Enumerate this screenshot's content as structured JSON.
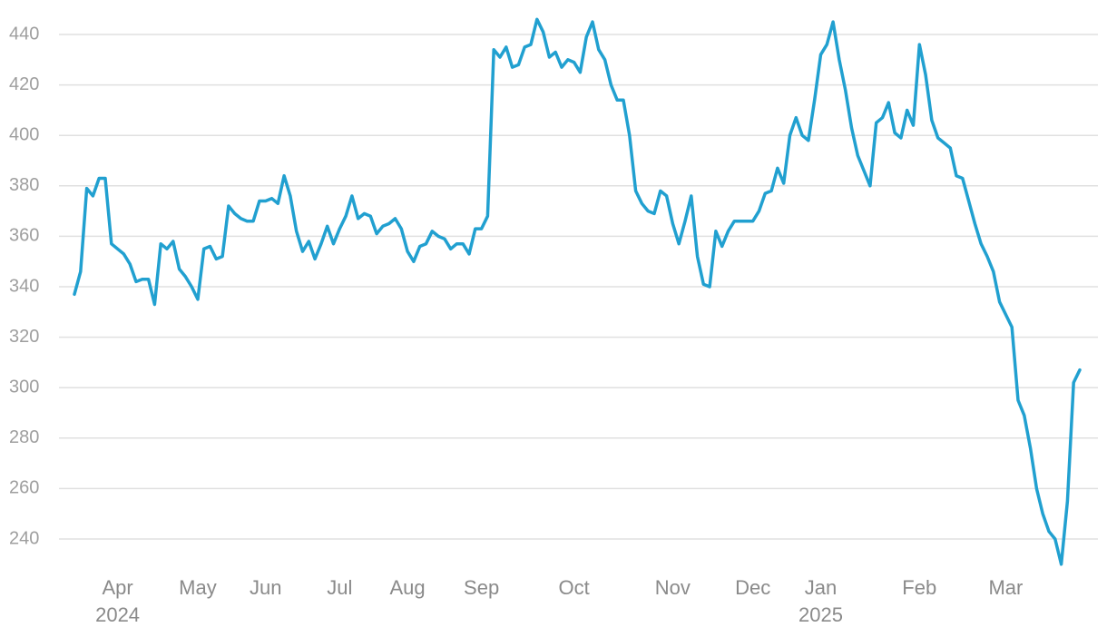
{
  "chart_data": {
    "type": "line",
    "color": "#21a0d0",
    "grid": true,
    "ylim": [
      230,
      450
    ],
    "yticks": [
      240,
      260,
      280,
      300,
      320,
      340,
      360,
      380,
      400,
      420,
      440
    ],
    "categories": [
      null,
      null,
      null,
      null,
      null,
      null,
      null,
      "Apr 2024",
      null,
      null,
      null,
      null,
      null,
      null,
      null,
      null,
      null,
      null,
      null,
      null,
      "May",
      null,
      null,
      null,
      null,
      null,
      null,
      null,
      null,
      null,
      null,
      "Jun",
      null,
      null,
      null,
      null,
      null,
      null,
      null,
      null,
      null,
      null,
      null,
      "Jul",
      null,
      null,
      null,
      null,
      null,
      null,
      null,
      null,
      null,
      null,
      "Aug",
      null,
      null,
      null,
      null,
      null,
      null,
      null,
      null,
      null,
      null,
      null,
      "Sep",
      null,
      null,
      null,
      null,
      null,
      null,
      null,
      null,
      null,
      null,
      null,
      null,
      null,
      null,
      "Oct",
      null,
      null,
      null,
      null,
      null,
      null,
      null,
      null,
      null,
      null,
      null,
      null,
      null,
      null,
      null,
      "Nov",
      null,
      null,
      null,
      null,
      null,
      null,
      null,
      null,
      null,
      null,
      null,
      null,
      "Dec",
      null,
      null,
      null,
      null,
      null,
      null,
      null,
      null,
      null,
      null,
      "Jan 2025",
      null,
      null,
      null,
      null,
      null,
      null,
      null,
      null,
      null,
      null,
      null,
      null,
      null,
      null,
      null,
      "Feb",
      null,
      null,
      null,
      null,
      null,
      null,
      null,
      null,
      null,
      null,
      null,
      null,
      null,
      "Mar",
      null,
      null,
      null,
      null,
      null,
      null,
      null,
      null,
      null,
      null,
      null,
      null
    ],
    "values": [
      337,
      346,
      379,
      376,
      383,
      383,
      357,
      355,
      353,
      349,
      342,
      343,
      343,
      333,
      357,
      355,
      358,
      347,
      344,
      340,
      335,
      355,
      356,
      351,
      352,
      372,
      369,
      367,
      366,
      366,
      374,
      374,
      375,
      373,
      384,
      376,
      362,
      354,
      358,
      351,
      357,
      364,
      357,
      363,
      368,
      376,
      367,
      369,
      368,
      361,
      364,
      365,
      367,
      363,
      354,
      350,
      356,
      357,
      362,
      360,
      359,
      355,
      357,
      357,
      353,
      363,
      363,
      368,
      434,
      431,
      435,
      427,
      428,
      435,
      436,
      446,
      441,
      431,
      433,
      427,
      430,
      429,
      425,
      439,
      445,
      434,
      430,
      420,
      414,
      414,
      400,
      378,
      373,
      370,
      369,
      378,
      376,
      365,
      357,
      366,
      376,
      352,
      341,
      340,
      362,
      356,
      362,
      366,
      366,
      366,
      366,
      370,
      377,
      378,
      387,
      381,
      400,
      407,
      400,
      398,
      414,
      432,
      436,
      445,
      430,
      418,
      403,
      392,
      386,
      380,
      405,
      407,
      413,
      401,
      399,
      410,
      404,
      436,
      424,
      406,
      399,
      397,
      395,
      384,
      383,
      374,
      365,
      357,
      352,
      346,
      334,
      329,
      324,
      295,
      289,
      276,
      260,
      250,
      243,
      240,
      230,
      255,
      302,
      307
    ]
  }
}
